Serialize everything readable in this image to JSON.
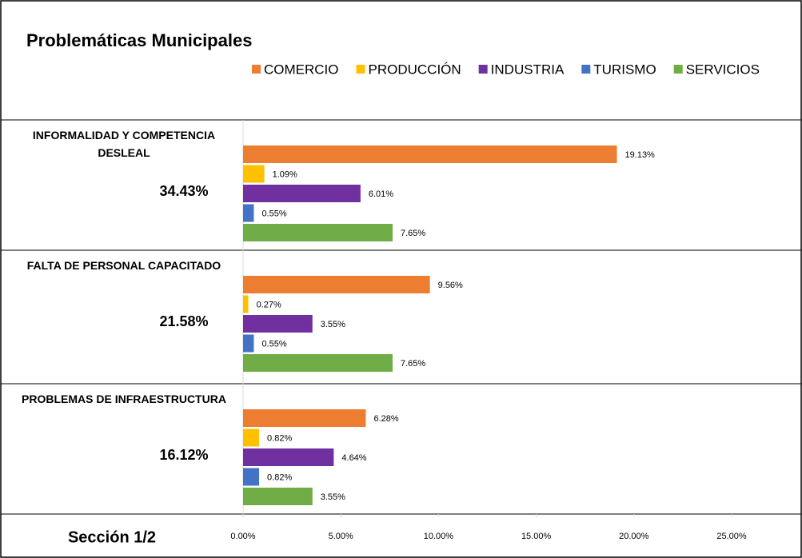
{
  "chart_data": {
    "type": "bar",
    "orientation": "horizontal",
    "title": "Problemáticas Municipales",
    "footer": "Sección 1/2",
    "categories": [
      "INFORMALIDAD Y COMPETENCIA DESLEAL",
      "FALTA DE PERSONAL CAPACITADO",
      "PROBLEMAS DE INFRAESTRUCTURA"
    ],
    "totals": [
      34.43,
      21.58,
      16.12
    ],
    "total_labels": [
      "34.43%",
      "21.58%",
      "16.12%"
    ],
    "series": [
      {
        "name": "COMERCIO",
        "color": "#ED7D31",
        "values": [
          19.13,
          9.56,
          6.28
        ],
        "value_labels": [
          "19.13%",
          "9.56%",
          "6.28%"
        ]
      },
      {
        "name": "PRODUCCIÓN",
        "color": "#FFC000",
        "values": [
          1.09,
          0.27,
          0.82
        ],
        "value_labels": [
          "1.09%",
          "0.27%",
          "0.82%"
        ]
      },
      {
        "name": "INDUSTRIA",
        "color": "#7030A0",
        "values": [
          6.01,
          3.55,
          4.64
        ],
        "value_labels": [
          "6.01%",
          "3.55%",
          "4.64%"
        ]
      },
      {
        "name": "TURISMO",
        "color": "#4472C4",
        "values": [
          0.55,
          0.55,
          0.82
        ],
        "value_labels": [
          "0.55%",
          "0.55%",
          "0.82%"
        ]
      },
      {
        "name": "SERVICIOS",
        "color": "#70AD47",
        "values": [
          7.65,
          7.65,
          3.55
        ],
        "value_labels": [
          "7.65%",
          "7.65%",
          "3.55%"
        ]
      }
    ],
    "xlim": [
      0,
      25
    ],
    "xticks": [
      {
        "value": 0,
        "label": "0.00%"
      },
      {
        "value": 5,
        "label": "5.00%"
      },
      {
        "value": 10,
        "label": "10.00%"
      },
      {
        "value": 15,
        "label": "15.00%"
      },
      {
        "value": 20,
        "label": "20.00%"
      },
      {
        "value": 25,
        "label": "25.00%"
      }
    ],
    "legend": "top-right"
  }
}
